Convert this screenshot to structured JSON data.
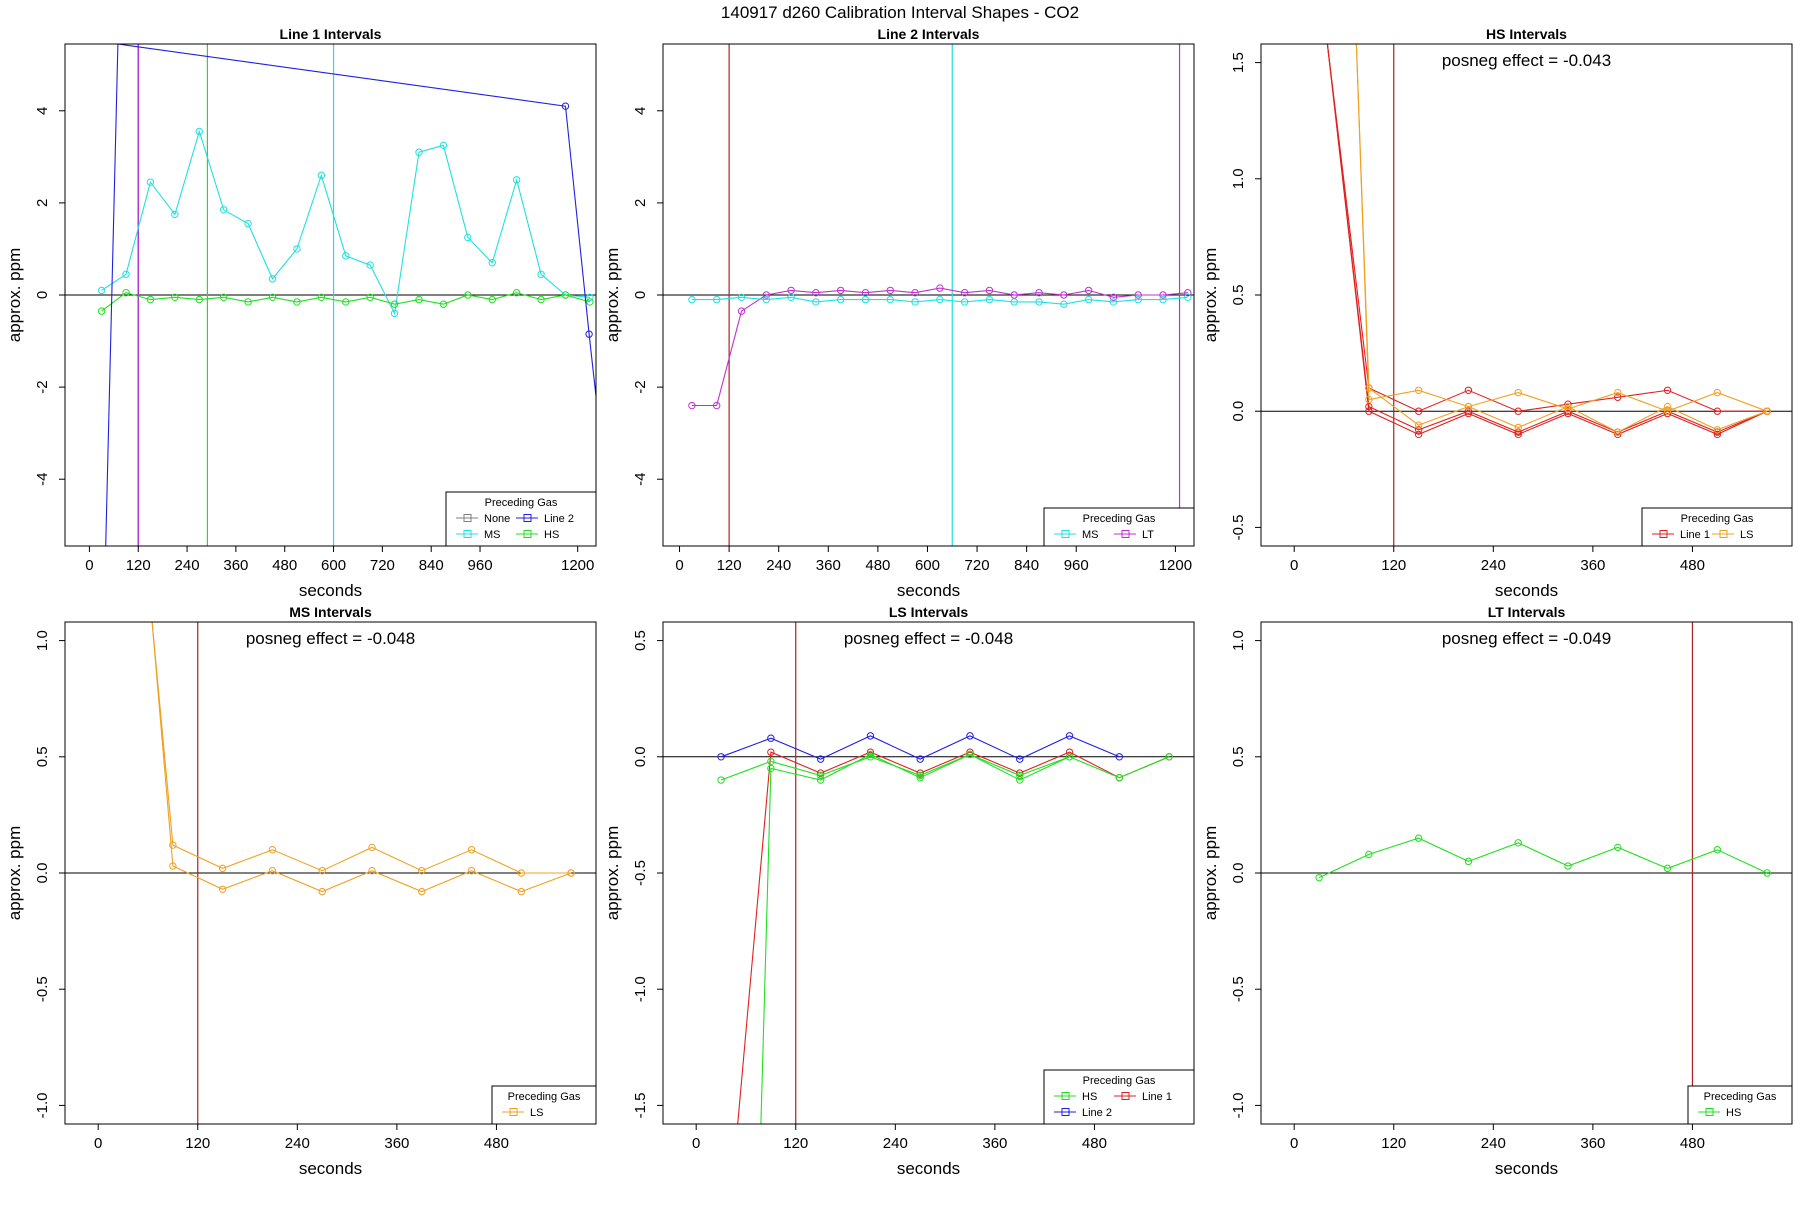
{
  "figure_title": "140917  d260   Calibration Interval Shapes - CO2",
  "colors": {
    "Line 1": "#e02020",
    "Line 2": "#2020e0",
    "MS": "#20e0e0",
    "HS": "#20e020",
    "LS": "#f0a020",
    "LT": "#c030d0",
    "None": "#808080",
    "vline_brown": "#b02020",
    "zero_line": "#000000"
  },
  "chart_data": [
    {
      "type": "line",
      "title": "Line 1 Intervals",
      "xlabel": "seconds",
      "ylabel": "approx. ppm",
      "xlim": [
        -60,
        1245
      ],
      "ylim": [
        -5.45,
        5.45
      ],
      "xticks": [
        0,
        120,
        240,
        360,
        480,
        600,
        720,
        840,
        960,
        1200
      ],
      "yticks": [
        -4,
        -2,
        0,
        2,
        4
      ],
      "posneg": "",
      "vlines": [
        {
          "x": 120,
          "color": "Line 2"
        },
        {
          "x": 120,
          "color": "LT"
        },
        {
          "x": 290,
          "color": "HS"
        },
        {
          "x": 600,
          "color": "MS"
        }
      ],
      "legend": {
        "title": "Preceding Gas",
        "items": [
          "None",
          "Line 2",
          "MS",
          "HS"
        ],
        "ncol": 2,
        "position": "bottom-right"
      },
      "series": [
        {
          "name": "MS",
          "x": [
            30,
            90,
            150,
            210,
            270,
            330,
            390,
            450,
            510,
            570,
            630,
            690,
            750,
            810,
            870,
            930,
            990,
            1050,
            1110,
            1170,
            1230
          ],
          "y": [
            0.1,
            0.45,
            2.45,
            1.75,
            3.55,
            1.85,
            1.55,
            0.35,
            1.0,
            2.6,
            0.85,
            0.65,
            -0.4,
            3.1,
            3.25,
            1.25,
            0.7,
            2.5,
            0.45,
            0.0,
            -0.05
          ]
        },
        {
          "name": "HS",
          "x": [
            30,
            90,
            150,
            210,
            270,
            330,
            390,
            450,
            510,
            570,
            630,
            690,
            750,
            810,
            870,
            930,
            990,
            1050,
            1110,
            1170,
            1230
          ],
          "y": [
            -0.35,
            0.05,
            -0.1,
            -0.05,
            -0.1,
            -0.05,
            -0.15,
            -0.05,
            -0.15,
            -0.05,
            -0.15,
            -0.05,
            -0.2,
            -0.1,
            -0.2,
            0.0,
            -0.1,
            0.05,
            -0.1,
            0.0,
            -0.15
          ]
        },
        {
          "name": "Line 2",
          "x": [
            40,
            70,
            1170,
            1228,
            1245
          ],
          "y": [
            -5.45,
            5.45,
            4.1,
            -0.85,
            -2.2
          ],
          "markers": [
            1170,
            1228
          ]
        }
      ]
    },
    {
      "type": "line",
      "title": "Line 2 Intervals",
      "xlabel": "seconds",
      "ylabel": "approx. ppm",
      "xlim": [
        -40,
        1245
      ],
      "ylim": [
        -5.45,
        5.45
      ],
      "xticks": [
        0,
        120,
        240,
        360,
        480,
        600,
        720,
        840,
        960,
        1200
      ],
      "yticks": [
        -4,
        -2,
        0,
        2,
        4
      ],
      "posneg": "",
      "vlines": [
        {
          "x": 120,
          "color": "vline_brown"
        },
        {
          "x": 660,
          "color": "MS"
        },
        {
          "x": 1210,
          "color": "LT"
        }
      ],
      "legend": {
        "title": "Preceding Gas",
        "items": [
          "MS",
          "LT"
        ],
        "ncol": 2,
        "position": "bottom-right"
      },
      "series": [
        {
          "name": "LT",
          "x": [
            30,
            90,
            150,
            210,
            270,
            330,
            390,
            450,
            510,
            570,
            630,
            690,
            750,
            810,
            870,
            930,
            990,
            1050,
            1110,
            1170,
            1230
          ],
          "y": [
            -2.4,
            -2.4,
            -0.35,
            0.0,
            0.1,
            0.05,
            0.1,
            0.05,
            0.1,
            0.05,
            0.15,
            0.05,
            0.1,
            0.0,
            0.05,
            0.0,
            0.1,
            -0.05,
            0.0,
            0.0,
            0.05
          ]
        },
        {
          "name": "MS",
          "x": [
            30,
            90,
            150,
            210,
            270,
            330,
            390,
            450,
            510,
            570,
            630,
            690,
            750,
            810,
            870,
            930,
            990,
            1050,
            1110,
            1170,
            1230
          ],
          "y": [
            -0.1,
            -0.1,
            -0.05,
            -0.1,
            -0.05,
            -0.15,
            -0.1,
            -0.1,
            -0.1,
            -0.15,
            -0.1,
            -0.15,
            -0.1,
            -0.15,
            -0.15,
            -0.2,
            -0.1,
            -0.15,
            -0.1,
            -0.1,
            -0.05
          ]
        }
      ]
    },
    {
      "type": "line",
      "title": "HS Intervals",
      "xlabel": "seconds",
      "ylabel": "approx. ppm",
      "xlim": [
        -40,
        600
      ],
      "ylim": [
        -0.58,
        1.58
      ],
      "xticks": [
        0,
        120,
        240,
        360,
        480
      ],
      "yticks": [
        -0.5,
        0.0,
        0.5,
        1.0,
        1.5
      ],
      "ytick_labels": [
        "-0.5",
        "0.0",
        "0.5",
        "1.0",
        "1.5"
      ],
      "posneg": "posneg effect = -0.043",
      "vlines": [
        {
          "x": 120,
          "color": "vline_brown"
        }
      ],
      "legend": {
        "title": "Preceding Gas",
        "items": [
          "Line 1",
          "LS"
        ],
        "ncol": 2,
        "position": "bottom-right"
      },
      "series": [
        {
          "name": "Line 1",
          "x": [
            40,
            90,
            150,
            210,
            270,
            330,
            390,
            450,
            510,
            570
          ],
          "y": [
            1.58,
            0.1,
            0.0,
            0.09,
            0.0,
            0.03,
            0.06,
            0.09,
            0.0,
            0.0
          ]
        },
        {
          "name": "Line 1",
          "x": [
            40,
            90,
            150,
            210,
            270,
            330,
            390,
            450,
            510,
            570
          ],
          "y": [
            1.58,
            0.02,
            -0.08,
            0.0,
            -0.09,
            0.0,
            -0.09,
            0.0,
            -0.09,
            0.0
          ]
        },
        {
          "name": "Line 1",
          "x": [
            40,
            90,
            150,
            210,
            270,
            330,
            390,
            450,
            510,
            570
          ],
          "y": [
            1.58,
            0.0,
            -0.1,
            -0.01,
            -0.1,
            -0.01,
            -0.1,
            -0.01,
            -0.1,
            0.0
          ]
        },
        {
          "name": "LS",
          "x": [
            75,
            90,
            150,
            210,
            270,
            330,
            390,
            450,
            510,
            570
          ],
          "y": [
            1.58,
            0.05,
            0.09,
            0.02,
            0.08,
            0.01,
            0.08,
            0.0,
            0.08,
            0.0
          ]
        },
        {
          "name": "LS",
          "x": [
            75,
            90,
            150,
            210,
            270,
            330,
            390,
            450,
            510,
            570
          ],
          "y": [
            1.58,
            0.1,
            -0.06,
            0.02,
            -0.07,
            0.02,
            -0.09,
            0.02,
            -0.08,
            0.0
          ]
        }
      ]
    },
    {
      "type": "line",
      "title": "MS Intervals",
      "xlabel": "seconds",
      "ylabel": "approx. ppm",
      "xlim": [
        -40,
        600
      ],
      "ylim": [
        -1.08,
        1.08
      ],
      "xticks": [
        0,
        120,
        240,
        360,
        480
      ],
      "yticks": [
        -1.0,
        -0.5,
        0.0,
        0.5,
        1.0
      ],
      "ytick_labels": [
        "-1.0",
        "-0.5",
        "0.0",
        "0.5",
        "1.0"
      ],
      "posneg": "posneg effect = -0.048",
      "vlines": [
        {
          "x": 120,
          "color": "vline_brown"
        }
      ],
      "legend": {
        "title": "Preceding Gas",
        "items": [
          "LS"
        ],
        "ncol": 1,
        "position": "bottom-right"
      },
      "series": [
        {
          "name": "LS",
          "x": [
            65,
            90,
            150,
            210,
            270,
            330,
            390,
            450,
            510,
            570
          ],
          "y": [
            1.08,
            0.12,
            0.02,
            0.1,
            0.01,
            0.11,
            0.01,
            0.1,
            0.0,
            0.0
          ]
        },
        {
          "name": "LS",
          "x": [
            65,
            90,
            150,
            210,
            270,
            330,
            390,
            450,
            510,
            570
          ],
          "y": [
            1.08,
            0.03,
            -0.07,
            0.01,
            -0.08,
            0.01,
            -0.08,
            0.01,
            -0.08,
            0.0
          ]
        }
      ]
    },
    {
      "type": "line",
      "title": "LS Intervals",
      "xlabel": "seconds",
      "ylabel": "approx. ppm",
      "xlim": [
        -40,
        600
      ],
      "ylim": [
        -1.58,
        0.58
      ],
      "xticks": [
        0,
        120,
        240,
        360,
        480
      ],
      "yticks": [
        -1.5,
        -1.0,
        -0.5,
        0.0,
        0.5
      ],
      "ytick_labels": [
        "-1.5",
        "-1.0",
        "-0.5",
        "0.0",
        "0.5"
      ],
      "posneg": "posneg effect = -0.048",
      "vlines": [
        {
          "x": 120,
          "color": "vline_brown"
        }
      ],
      "legend": {
        "title": "Preceding Gas",
        "items": [
          "HS",
          "Line 1",
          "Line 2"
        ],
        "ncol": 2,
        "position": "bottom-right"
      },
      "series": [
        {
          "name": "Line 2",
          "x": [
            30,
            90,
            150,
            210,
            270,
            330,
            390,
            450,
            510
          ],
          "y": [
            0.0,
            0.08,
            -0.01,
            0.09,
            -0.01,
            0.09,
            -0.01,
            0.09,
            0.0
          ]
        },
        {
          "name": "Line 1",
          "x": [
            50,
            90,
            150,
            210,
            270,
            330,
            390,
            450,
            510,
            570
          ],
          "y": [
            -1.58,
            0.02,
            -0.07,
            0.02,
            -0.07,
            0.02,
            -0.07,
            0.02,
            -0.09,
            0.0
          ]
        },
        {
          "name": "HS",
          "x": [
            30,
            90,
            150,
            210,
            270,
            330,
            390,
            450,
            510,
            570
          ],
          "y": [
            -0.1,
            -0.02,
            -0.08,
            0.0,
            -0.08,
            0.01,
            -0.08,
            0.0,
            -0.09,
            0.0
          ]
        },
        {
          "name": "HS",
          "x": [
            78,
            90,
            150,
            210,
            270,
            330,
            390,
            450
          ],
          "y": [
            -1.58,
            -0.05,
            -0.1,
            0.01,
            -0.09,
            0.01,
            -0.1,
            0.0
          ]
        }
      ]
    },
    {
      "type": "line",
      "title": "LT Intervals",
      "xlabel": "seconds",
      "ylabel": "approx. ppm",
      "xlim": [
        -40,
        600
      ],
      "ylim": [
        -1.08,
        1.08
      ],
      "xticks": [
        0,
        120,
        240,
        360,
        480
      ],
      "yticks": [
        -1.0,
        -0.5,
        0.0,
        0.5,
        1.0
      ],
      "ytick_labels": [
        "-1.0",
        "-0.5",
        "0.0",
        "0.5",
        "1.0"
      ],
      "posneg": "posneg effect = -0.049",
      "vlines": [
        {
          "x": 480,
          "color": "vline_brown"
        }
      ],
      "legend": {
        "title": "Preceding Gas",
        "items": [
          "HS"
        ],
        "ncol": 1,
        "position": "bottom-right"
      },
      "series": [
        {
          "name": "HS",
          "x": [
            30,
            90,
            150,
            210,
            270,
            330,
            390,
            450,
            510,
            570
          ],
          "y": [
            -0.02,
            0.08,
            0.15,
            0.05,
            0.13,
            0.03,
            0.11,
            0.02,
            0.1,
            0.0
          ]
        }
      ]
    }
  ]
}
